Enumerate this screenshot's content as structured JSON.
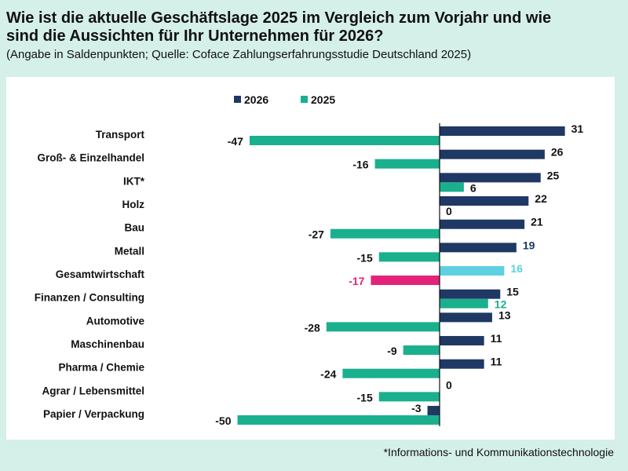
{
  "title": "Wie ist die aktuelle Geschäftslage 2025 im Vergleich zum Vorjahr und wie sind die Aussichten für Ihr Unternehmen für 2026?",
  "subtitle": "(Angabe in Saldenpunkten; Quelle: Coface Zahlungserfahrungsstudie Deutschland 2025)",
  "footnote": "*Informations- und Kommunikationstechnologie",
  "chart_data": {
    "type": "bar",
    "orientation": "horizontal",
    "legend_position": "top",
    "grid": false,
    "categories": [
      "Transport",
      "Groß- & Einzelhandel",
      "IKT*",
      "Holz",
      "Bau",
      "Metall",
      "Gesamtwirtschaft",
      "Finanzen / Consulting",
      "Automotive",
      "Maschinenbau",
      "Pharma / Chemie",
      "Agrar / Lebensmittel",
      "Papier / Verpackung"
    ],
    "series": [
      {
        "name": "2026",
        "color": "#1f3864",
        "values": [
          31,
          26,
          25,
          22,
          21,
          19,
          16,
          15,
          13,
          11,
          11,
          0,
          -3
        ]
      },
      {
        "name": "2025",
        "color": "#1bb08d",
        "values": [
          -47,
          -16,
          6,
          0,
          -27,
          -15,
          -17,
          12,
          -28,
          -9,
          -24,
          -15,
          -50
        ]
      }
    ],
    "highlight": {
      "category": "Gesamtwirtschaft",
      "colors": {
        "2026": "#5fd0e2",
        "2025": "#e42279"
      }
    },
    "label_colors": {
      "Metall_2026": "#1f3864",
      "Finanzen / Consulting_2025": "#1bb08d"
    },
    "xlim": [
      -50,
      31
    ]
  }
}
